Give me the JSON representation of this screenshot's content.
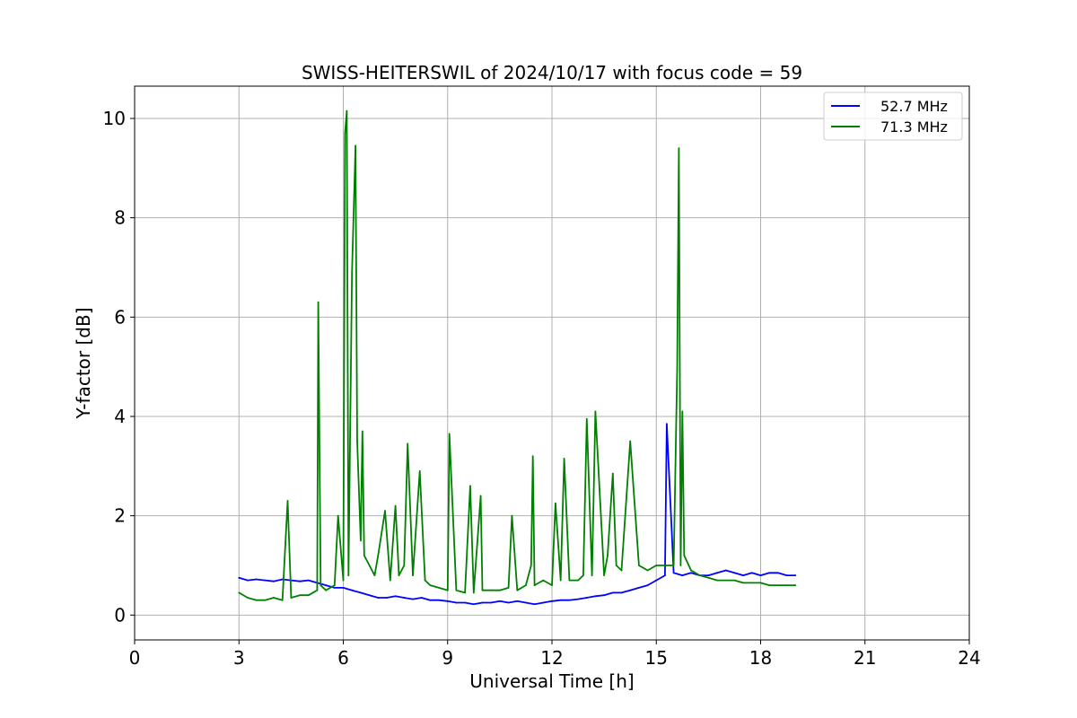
{
  "chart_data": {
    "type": "line",
    "title": "SWISS-HEITERSWIL of 2024/10/17 with focus code = 59",
    "xlabel": "Universal Time [h]",
    "ylabel": "Y-factor [dB]",
    "xlim": [
      0,
      24
    ],
    "ylim": [
      -0.5,
      10.65
    ],
    "xticks": [
      0,
      3,
      6,
      9,
      12,
      15,
      18,
      21,
      24
    ],
    "yticks": [
      0,
      2,
      4,
      6,
      8,
      10
    ],
    "grid": true,
    "legend_position": "top-right",
    "series": [
      {
        "name": "52.7 MHz",
        "color": "#0000ff",
        "x": [
          3.0,
          3.25,
          3.5,
          3.75,
          4.0,
          4.25,
          4.5,
          4.75,
          5.0,
          5.25,
          5.5,
          5.75,
          6.0,
          6.25,
          6.5,
          6.75,
          7.0,
          7.25,
          7.5,
          7.75,
          8.0,
          8.25,
          8.5,
          8.75,
          9.0,
          9.25,
          9.5,
          9.75,
          10.0,
          10.25,
          10.5,
          10.75,
          11.0,
          11.25,
          11.5,
          11.75,
          12.0,
          12.25,
          12.5,
          12.75,
          13.0,
          13.25,
          13.5,
          13.75,
          14.0,
          14.25,
          14.5,
          14.75,
          15.0,
          15.25,
          15.3,
          15.5,
          15.75,
          16.0,
          16.25,
          16.5,
          16.75,
          17.0,
          17.25,
          17.5,
          17.75,
          18.0,
          18.25,
          18.5,
          18.75,
          19.0
        ],
        "y": [
          0.75,
          0.7,
          0.72,
          0.7,
          0.68,
          0.72,
          0.7,
          0.68,
          0.7,
          0.65,
          0.6,
          0.55,
          0.55,
          0.5,
          0.45,
          0.4,
          0.35,
          0.35,
          0.38,
          0.35,
          0.32,
          0.35,
          0.3,
          0.3,
          0.28,
          0.25,
          0.25,
          0.22,
          0.25,
          0.25,
          0.28,
          0.25,
          0.28,
          0.25,
          0.22,
          0.25,
          0.28,
          0.3,
          0.3,
          0.32,
          0.35,
          0.38,
          0.4,
          0.45,
          0.45,
          0.5,
          0.55,
          0.6,
          0.7,
          0.8,
          3.85,
          0.85,
          0.8,
          0.85,
          0.8,
          0.8,
          0.85,
          0.9,
          0.85,
          0.8,
          0.85,
          0.8,
          0.85,
          0.85,
          0.8,
          0.8
        ]
      },
      {
        "name": "71.3 MHz",
        "color": "#008000",
        "x": [
          3.0,
          3.25,
          3.5,
          3.75,
          4.0,
          4.25,
          4.4,
          4.5,
          4.75,
          5.0,
          5.25,
          5.28,
          5.35,
          5.5,
          5.75,
          5.85,
          6.0,
          6.05,
          6.1,
          6.15,
          6.25,
          6.35,
          6.4,
          6.5,
          6.55,
          6.6,
          6.75,
          6.9,
          7.0,
          7.2,
          7.35,
          7.5,
          7.6,
          7.75,
          7.85,
          8.0,
          8.2,
          8.35,
          8.5,
          8.75,
          9.0,
          9.05,
          9.25,
          9.5,
          9.65,
          9.75,
          9.95,
          10.0,
          10.25,
          10.5,
          10.75,
          10.85,
          11.0,
          11.25,
          11.4,
          11.45,
          11.5,
          11.75,
          12.0,
          12.1,
          12.25,
          12.35,
          12.5,
          12.75,
          12.9,
          13.0,
          13.15,
          13.25,
          13.5,
          13.6,
          13.75,
          13.85,
          14.0,
          14.25,
          14.5,
          14.75,
          15.0,
          15.25,
          15.5,
          15.6,
          15.65,
          15.7,
          15.75,
          15.8,
          16.0,
          16.25,
          16.5,
          16.75,
          17.0,
          17.25,
          17.5,
          17.75,
          18.0,
          18.25,
          18.5,
          18.75,
          19.0
        ],
        "y": [
          0.45,
          0.35,
          0.3,
          0.3,
          0.35,
          0.3,
          2.3,
          0.35,
          0.4,
          0.4,
          0.5,
          6.3,
          0.6,
          0.5,
          0.6,
          2.0,
          0.7,
          9.7,
          10.15,
          0.8,
          6.9,
          9.45,
          3.5,
          1.5,
          3.7,
          1.2,
          1.0,
          0.8,
          1.2,
          2.1,
          0.7,
          2.2,
          0.8,
          1.0,
          3.45,
          0.8,
          2.9,
          0.7,
          0.6,
          0.55,
          0.5,
          3.65,
          0.5,
          0.45,
          2.6,
          0.45,
          2.4,
          0.5,
          0.5,
          0.5,
          0.55,
          2.0,
          0.5,
          0.6,
          1.0,
          3.2,
          0.6,
          0.7,
          0.6,
          2.25,
          0.7,
          3.15,
          0.7,
          0.7,
          0.8,
          3.95,
          0.8,
          4.1,
          0.8,
          1.2,
          2.85,
          1.0,
          0.9,
          3.5,
          1.0,
          0.9,
          1.0,
          1.0,
          1.0,
          4.95,
          9.4,
          1.0,
          4.1,
          1.2,
          0.9,
          0.8,
          0.75,
          0.7,
          0.7,
          0.7,
          0.65,
          0.65,
          0.65,
          0.6,
          0.6,
          0.6,
          0.6
        ]
      }
    ]
  }
}
